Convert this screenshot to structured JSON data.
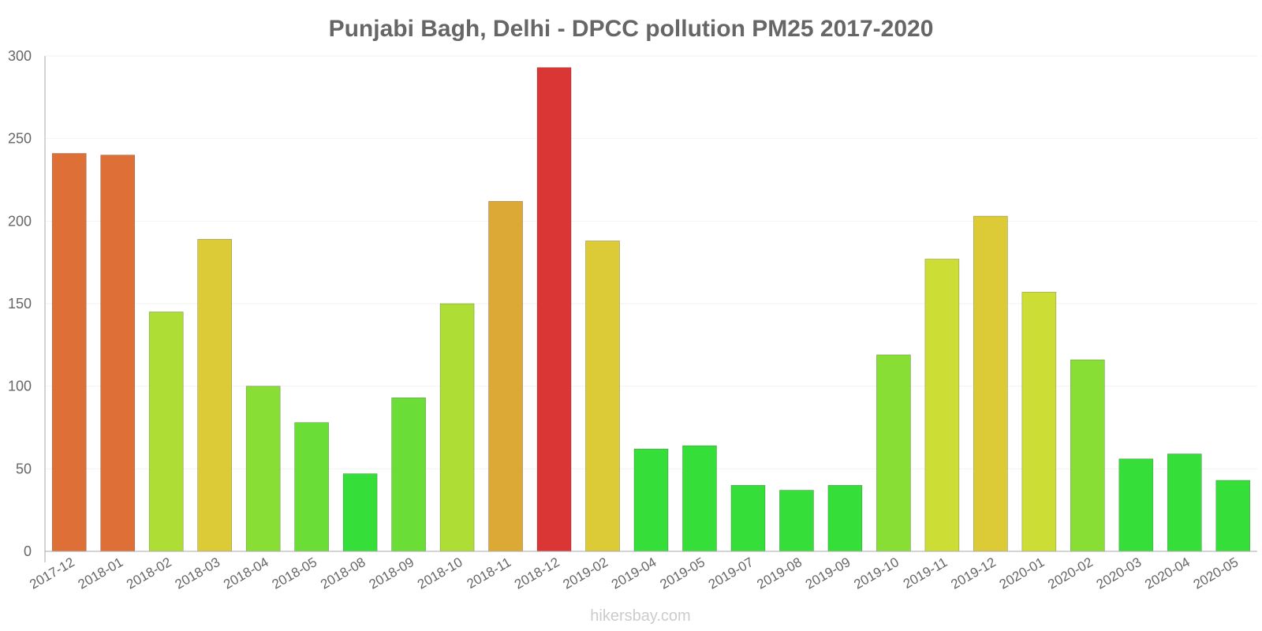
{
  "chart_data": {
    "type": "bar",
    "title": "Punjabi Bagh, Delhi - DPCC pollution PM25 2017-2020",
    "xlabel": "",
    "ylabel": "",
    "ylim": [
      0,
      300
    ],
    "yticks": [
      0,
      50,
      100,
      150,
      200,
      250,
      300
    ],
    "grid": true,
    "categories": [
      "2017-12",
      "2018-01",
      "2018-02",
      "2018-03",
      "2018-04",
      "2018-05",
      "2018-08",
      "2018-09",
      "2018-10",
      "2018-11",
      "2018-12",
      "2019-02",
      "2019-04",
      "2019-05",
      "2019-07",
      "2019-08",
      "2019-09",
      "2019-10",
      "2019-11",
      "2019-12",
      "2020-01",
      "2020-02",
      "2020-03",
      "2020-04",
      "2020-05"
    ],
    "values": [
      241,
      240,
      145,
      189,
      100,
      78,
      47,
      93,
      150,
      212,
      293,
      188,
      62,
      64,
      40,
      37,
      40,
      119,
      177,
      203,
      157,
      116,
      56,
      59,
      43
    ],
    "colors": [
      "#de6f36",
      "#de6f36",
      "#aede36",
      "#dcca36",
      "#89de36",
      "#6ade36",
      "#36de3a",
      "#6ade36",
      "#aede36",
      "#dca936",
      "#db3636",
      "#dcca36",
      "#36de3a",
      "#36de3a",
      "#36de3a",
      "#36de3a",
      "#36de3a",
      "#89de36",
      "#ccde36",
      "#dcca36",
      "#ccde36",
      "#89de36",
      "#36de3a",
      "#36de3a",
      "#36de3a"
    ]
  },
  "watermark": "hikersbay.com"
}
